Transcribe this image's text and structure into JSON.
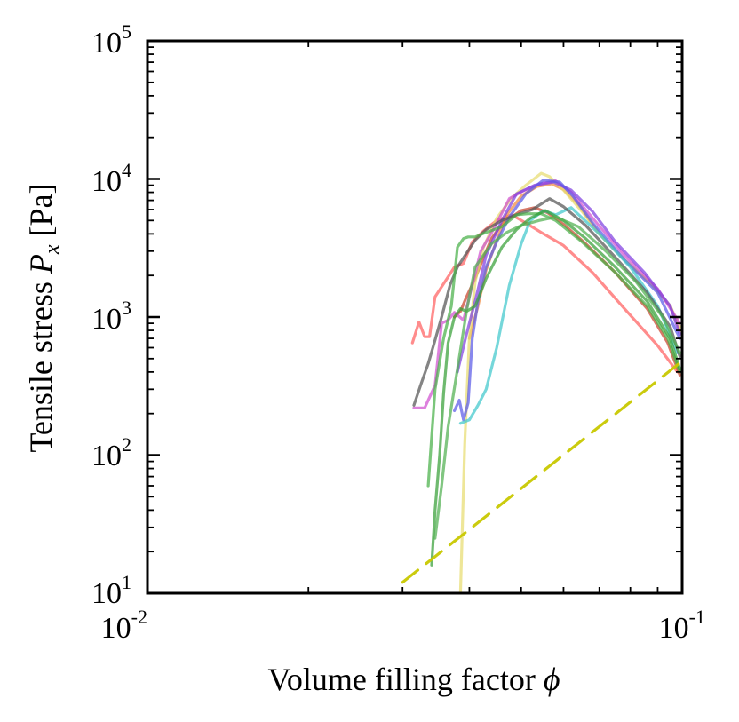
{
  "chart_data": {
    "type": "line",
    "xscale": "log",
    "yscale": "log",
    "xlim": [
      0.01,
      0.1
    ],
    "ylim": [
      10,
      100000
    ],
    "xlabel": "Volume filling factor",
    "xlabel_symbol": "ϕ",
    "ylabel": "Tensile stress",
    "ylabel_symbol": "P",
    "ylabel_subscript": "x",
    "ylabel_unit": "[Pa]",
    "x_ticks": [
      {
        "base": "10",
        "exp": "-2"
      },
      {
        "base": "10",
        "exp": "-1"
      }
    ],
    "y_ticks": [
      {
        "base": "10",
        "exp": "1"
      },
      {
        "base": "10",
        "exp": "2"
      },
      {
        "base": "10",
        "exp": "3"
      },
      {
        "base": "10",
        "exp": "4"
      },
      {
        "base": "10",
        "exp": "5"
      }
    ],
    "series": [
      {
        "name": "red",
        "color": "#ff6060",
        "style": "solid",
        "x": [
          0.0313,
          0.0322,
          0.033,
          0.0337,
          0.0345,
          0.036,
          0.0375,
          0.039,
          0.0405,
          0.0425,
          0.045,
          0.048,
          0.051,
          0.0545,
          0.06,
          0.068,
          0.078,
          0.09,
          0.098
        ],
        "y": [
          650,
          920,
          720,
          720,
          1400,
          1800,
          2300,
          2450,
          3500,
          4200,
          5000,
          5500,
          4800,
          4100,
          3300,
          2100,
          1150,
          620,
          400
        ]
      },
      {
        "name": "brown-red",
        "color": "#c8442c",
        "style": "solid",
        "x": [
          0.0375,
          0.0385,
          0.0395,
          0.041,
          0.0425,
          0.044,
          0.046,
          0.048,
          0.05,
          0.053,
          0.056,
          0.06,
          0.066,
          0.075,
          0.086,
          0.094,
          0.099
        ],
        "y": [
          1000,
          1100,
          1400,
          1900,
          2700,
          3700,
          4700,
          5300,
          5900,
          6200,
          5700,
          4700,
          3400,
          2100,
          1150,
          650,
          380
        ]
      },
      {
        "name": "orange",
        "color": "#f08a40",
        "style": "solid",
        "x": [
          0.04,
          0.0415,
          0.043,
          0.045,
          0.047,
          0.05,
          0.0535,
          0.057,
          0.06,
          0.064,
          0.07,
          0.078,
          0.088,
          0.095,
          0.099
        ],
        "y": [
          700,
          1200,
          2200,
          3600,
          5500,
          7500,
          8800,
          9200,
          8400,
          6500,
          4000,
          2600,
          1700,
          1200,
          800
        ]
      },
      {
        "name": "yellow-pale",
        "color": "#e8dc70",
        "style": "solid",
        "x": [
          0.0385,
          0.0392,
          0.04,
          0.041,
          0.0425,
          0.045,
          0.048,
          0.051,
          0.0545,
          0.0565,
          0.06,
          0.065,
          0.07,
          0.078,
          0.088,
          0.095,
          0.099
        ],
        "y": [
          10,
          120,
          700,
          1800,
          3200,
          5200,
          7300,
          9000,
          11000,
          10400,
          8300,
          5800,
          4000,
          2600,
          1700,
          1200,
          850
        ]
      },
      {
        "name": "magenta",
        "color": "#d050d0",
        "style": "solid",
        "x": [
          0.0315,
          0.033,
          0.0345,
          0.0355,
          0.0365,
          0.0375,
          0.039,
          0.0405,
          0.042,
          0.0445,
          0.0475,
          0.0505,
          0.054,
          0.058,
          0.062,
          0.068,
          0.078,
          0.09,
          0.099
        ],
        "y": [
          220,
          220,
          320,
          900,
          950,
          1080,
          950,
          1700,
          3000,
          4400,
          7200,
          8200,
          9200,
          9700,
          8000,
          5200,
          2800,
          1600,
          900
        ]
      },
      {
        "name": "purple",
        "color": "#8040e0",
        "style": "solid",
        "x": [
          0.038,
          0.0395,
          0.041,
          0.043,
          0.046,
          0.049,
          0.053,
          0.0575,
          0.062,
          0.068,
          0.075,
          0.085,
          0.095,
          0.099
        ],
        "y": [
          400,
          750,
          1300,
          2800,
          5000,
          7800,
          9000,
          9500,
          8300,
          5800,
          3500,
          2100,
          1200,
          750
        ]
      },
      {
        "name": "blue",
        "color": "#5a5ae8",
        "style": "solid",
        "x": [
          0.0375,
          0.0383,
          0.039,
          0.0398,
          0.0405,
          0.0415,
          0.043,
          0.045,
          0.0475,
          0.051,
          0.055,
          0.059,
          0.0625,
          0.068,
          0.078,
          0.09,
          0.099
        ],
        "y": [
          210,
          250,
          180,
          240,
          700,
          1300,
          2300,
          3500,
          5300,
          7800,
          9800,
          9500,
          7500,
          4800,
          2600,
          1500,
          700
        ]
      },
      {
        "name": "cyan",
        "color": "#40c8cc",
        "style": "solid",
        "x": [
          0.0385,
          0.04,
          0.0415,
          0.043,
          0.045,
          0.0475,
          0.05,
          0.052,
          0.055,
          0.058,
          0.062,
          0.07,
          0.08,
          0.09,
          0.098
        ],
        "y": [
          170,
          180,
          230,
          300,
          600,
          1700,
          3400,
          5000,
          5900,
          5500,
          6200,
          4000,
          2300,
          1200,
          550
        ]
      },
      {
        "name": "gray",
        "color": "#555555",
        "style": "solid",
        "x": [
          0.0315,
          0.0325,
          0.0335,
          0.0345,
          0.0355,
          0.0368,
          0.038,
          0.0395,
          0.041,
          0.043,
          0.046,
          0.049,
          0.0525,
          0.0565,
          0.06,
          0.066,
          0.075,
          0.086,
          0.095,
          0.099
        ],
        "y": [
          230,
          330,
          460,
          680,
          1000,
          1700,
          2300,
          2900,
          3600,
          4300,
          5000,
          5500,
          6000,
          7200,
          6300,
          4600,
          2700,
          1500,
          850,
          520
        ]
      },
      {
        "name": "green-1",
        "color": "#48b048",
        "style": "solid",
        "x": [
          0.0335,
          0.0345,
          0.0358,
          0.037,
          0.038,
          0.039,
          0.0398,
          0.041,
          0.043,
          0.046,
          0.049,
          0.0515,
          0.0545,
          0.058,
          0.065,
          0.075,
          0.086,
          0.094,
          0.099
        ],
        "y": [
          60,
          300,
          700,
          1200,
          3200,
          3700,
          3800,
          3800,
          4100,
          4500,
          5500,
          5600,
          5600,
          5000,
          3500,
          2100,
          1200,
          700,
          400
        ]
      },
      {
        "name": "green-2",
        "color": "#38a038",
        "style": "solid",
        "x": [
          0.034,
          0.0345,
          0.0352,
          0.0358,
          0.0365,
          0.0375,
          0.0385,
          0.0395,
          0.041,
          0.043,
          0.046,
          0.049,
          0.052,
          0.0555,
          0.06,
          0.066,
          0.075,
          0.086,
          0.095,
          0.099
        ],
        "y": [
          16,
          40,
          100,
          280,
          650,
          1000,
          1150,
          1100,
          1200,
          1900,
          3200,
          4300,
          5200,
          5900,
          5000,
          3700,
          2300,
          1300,
          700,
          420
        ]
      },
      {
        "name": "green-3",
        "color": "#50b050",
        "style": "solid",
        "x": [
          0.0345,
          0.0355,
          0.0365,
          0.038,
          0.0395,
          0.041,
          0.044,
          0.047,
          0.05,
          0.054,
          0.058,
          0.064,
          0.072,
          0.082,
          0.092,
          0.099
        ],
        "y": [
          25,
          60,
          160,
          420,
          1100,
          2300,
          3400,
          4100,
          4600,
          5000,
          5300,
          4500,
          3000,
          1800,
          1000,
          550
        ]
      },
      {
        "name": "power-law",
        "color": "#c8c800",
        "style": "dashed",
        "x": [
          0.03,
          0.1
        ],
        "y": [
          12,
          480
        ]
      }
    ]
  }
}
